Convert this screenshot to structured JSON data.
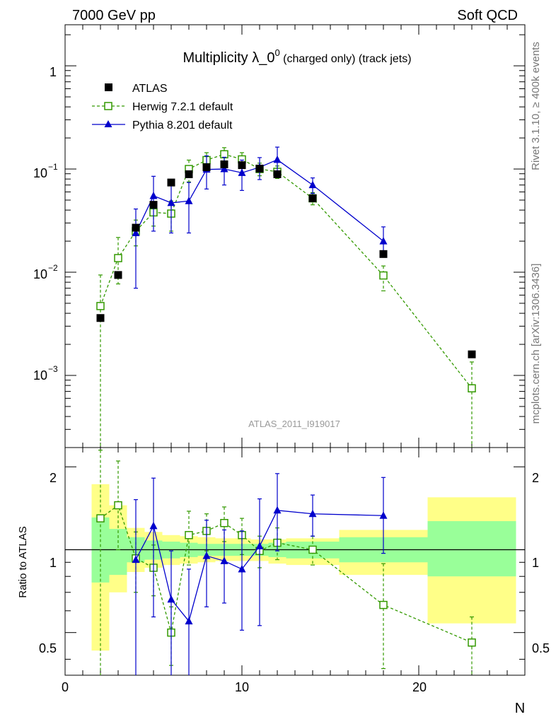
{
  "header": {
    "left": "7000 GeV pp",
    "right": "Soft QCD"
  },
  "side_text": {
    "rivet": "Rivet 3.1.10, ≥ 400k events",
    "source": "mcplots.cern.ch [arXiv:1306.3436]"
  },
  "chart_data": [
    {
      "type": "scatter",
      "title_main": "Multiplicity λ_0",
      "title_sup": "0",
      "title_sub": " (charged only) (track jets)",
      "analysis_label": "ATLAS_2011_I919017",
      "xlim": [
        0,
        26
      ],
      "ylim": [
        0.0002,
        2.5
      ],
      "yscale": "log",
      "legend": {
        "position": "top-left",
        "entries": [
          {
            "name": "ATLAS",
            "marker": "square-filled",
            "color": "#000000"
          },
          {
            "name": "Herwig 7.2.1 default",
            "marker": "square-open",
            "color": "#339900",
            "line": "dashed"
          },
          {
            "name": "Pythia 8.201 default",
            "marker": "triangle-filled",
            "color": "#0000cc",
            "line": "solid"
          }
        ]
      },
      "series": [
        {
          "name": "ATLAS",
          "color": "#000000",
          "x": [
            2,
            3,
            4,
            5,
            6,
            7,
            8,
            9,
            10,
            11,
            12,
            14,
            18,
            23
          ],
          "y": [
            0.0036,
            0.0094,
            0.027,
            0.045,
            0.074,
            0.089,
            0.104,
            0.111,
            0.109,
            0.101,
            0.089,
            0.052,
            0.015,
            0.0016
          ]
        },
        {
          "name": "Herwig 7.2.1 default",
          "color": "#339900",
          "x": [
            2,
            3,
            4,
            5,
            6,
            7,
            8,
            9,
            10,
            11,
            12,
            14,
            18,
            23
          ],
          "y": [
            0.0047,
            0.0137,
            0.025,
            0.038,
            0.037,
            0.1,
            0.122,
            0.139,
            0.124,
            0.1,
            0.094,
            0.052,
            0.0093,
            0.00075
          ],
          "yerr_low": [
            0.0047,
            0.006,
            0.007,
            0.01,
            0.012,
            0.025,
            0.022,
            0.022,
            0.02,
            0.014,
            0.013,
            0.007,
            0.0027,
            0.00075
          ],
          "yerr_high": [
            0.0047,
            0.008,
            0.007,
            0.01,
            0.012,
            0.022,
            0.022,
            0.022,
            0.02,
            0.014,
            0.013,
            0.007,
            0.0022,
            0.0006
          ]
        },
        {
          "name": "Pythia 8.201 default",
          "color": "#0000cc",
          "x": [
            4,
            5,
            6,
            7,
            8,
            9,
            10,
            11,
            12,
            14,
            18
          ],
          "y": [
            0.024,
            0.055,
            0.047,
            0.049,
            0.099,
            0.1,
            0.092,
            0.104,
            0.123,
            0.07,
            0.02
          ],
          "yerr_low": [
            0.017,
            0.03,
            0.023,
            0.025,
            0.035,
            0.03,
            0.03,
            0.025,
            0.035,
            0.012,
            0.0055
          ],
          "yerr_high": [
            0.017,
            0.03,
            0.023,
            0.025,
            0.035,
            0.03,
            0.03,
            0.025,
            0.04,
            0.012,
            0.0075
          ]
        }
      ],
      "y_tick_labels": [
        {
          "value": 1,
          "base": "1",
          "exp": ""
        },
        {
          "value": 0.1,
          "base": "10",
          "exp": "−1"
        },
        {
          "value": 0.01,
          "base": "10",
          "exp": "−2"
        },
        {
          "value": 0.001,
          "base": "10",
          "exp": "−3"
        }
      ]
    },
    {
      "type": "scatter",
      "ylabel": "Ratio to ATLAS",
      "xlabel": "N",
      "xlim": [
        0,
        26
      ],
      "ylim": [
        0.35,
        2.35
      ],
      "yscale": "log",
      "x_tick_labels": [
        "0",
        "10",
        "20"
      ],
      "y_tick_labels": [
        "0.5",
        "1",
        "2"
      ],
      "bands": [
        {
          "x0": 1.5,
          "x1": 2.5,
          "yellow": [
            0.43,
            1.73
          ],
          "green": [
            0.76,
            1.31
          ]
        },
        {
          "x0": 2.5,
          "x1": 3.5,
          "yellow": [
            0.7,
            1.45
          ],
          "green": [
            0.81,
            1.19
          ]
        },
        {
          "x0": 3.5,
          "x1": 4.5,
          "yellow": [
            0.83,
            1.2
          ],
          "green": [
            0.9,
            1.11
          ]
        },
        {
          "x0": 4.5,
          "x1": 5.5,
          "yellow": [
            0.86,
            1.16
          ],
          "green": [
            0.92,
            1.08
          ]
        },
        {
          "x0": 5.5,
          "x1": 6.5,
          "yellow": [
            0.88,
            1.13
          ],
          "green": [
            0.93,
            1.07
          ]
        },
        {
          "x0": 6.5,
          "x1": 7.5,
          "yellow": [
            0.89,
            1.12
          ],
          "green": [
            0.94,
            1.06
          ]
        },
        {
          "x0": 7.5,
          "x1": 8.5,
          "yellow": [
            0.9,
            1.11
          ],
          "green": [
            0.95,
            1.05
          ]
        },
        {
          "x0": 8.5,
          "x1": 9.5,
          "yellow": [
            0.91,
            1.1
          ],
          "green": [
            0.95,
            1.05
          ]
        },
        {
          "x0": 9.5,
          "x1": 10.5,
          "yellow": [
            0.91,
            1.1
          ],
          "green": [
            0.95,
            1.05
          ]
        },
        {
          "x0": 10.5,
          "x1": 11.5,
          "yellow": [
            0.91,
            1.09
          ],
          "green": [
            0.95,
            1.05
          ]
        },
        {
          "x0": 11.5,
          "x1": 12.5,
          "yellow": [
            0.89,
            1.09
          ],
          "green": [
            0.94,
            1.06
          ]
        },
        {
          "x0": 12.5,
          "x1": 15.5,
          "yellow": [
            0.88,
            1.1
          ],
          "green": [
            0.93,
            1.07
          ]
        },
        {
          "x0": 15.5,
          "x1": 20.5,
          "yellow": [
            0.81,
            1.18
          ],
          "green": [
            0.9,
            1.11
          ]
        },
        {
          "x0": 20.5,
          "x1": 25.5,
          "yellow": [
            0.54,
            1.55
          ],
          "green": [
            0.8,
            1.27
          ]
        }
      ],
      "series": [
        {
          "name": "Herwig 7.2.1 default",
          "color": "#339900",
          "x": [
            2,
            3,
            4,
            5,
            6,
            7,
            8,
            9,
            10,
            11,
            12,
            14,
            18,
            23
          ],
          "y": [
            1.3,
            1.45,
            0.93,
            0.86,
            0.5,
            1.13,
            1.17,
            1.25,
            1.13,
            0.99,
            1.06,
            1.0,
            0.63,
            0.46
          ],
          "yerr_low": [
            0.95,
            0.45,
            0.23,
            0.18,
            0.12,
            0.25,
            0.18,
            0.18,
            0.17,
            0.13,
            0.14,
            0.12,
            0.26,
            0.11
          ],
          "yerr_high": [
            1.0,
            0.65,
            0.23,
            0.18,
            0.12,
            0.25,
            0.18,
            0.18,
            0.17,
            0.13,
            0.14,
            0.12,
            0.26,
            0.11
          ]
        },
        {
          "name": "Pythia 8.201 default",
          "color": "#0000cc",
          "x": [
            4,
            5,
            6,
            7,
            8,
            9,
            10,
            11,
            12,
            14,
            18
          ],
          "y": [
            0.92,
            1.22,
            0.66,
            0.55,
            0.95,
            0.91,
            0.85,
            1.03,
            1.39,
            1.35,
            1.33
          ],
          "yerr_low": [
            0.6,
            0.65,
            0.33,
            0.3,
            0.33,
            0.27,
            0.34,
            0.5,
            0.4,
            0.23,
            0.36
          ],
          "yerr_high": [
            0.6,
            0.6,
            0.33,
            0.3,
            0.33,
            0.27,
            0.32,
            0.5,
            0.5,
            0.23,
            0.5
          ]
        }
      ]
    }
  ]
}
